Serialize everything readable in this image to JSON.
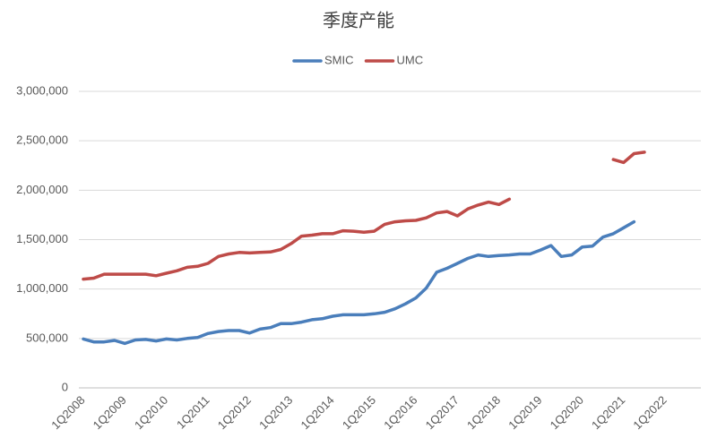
{
  "chart_data": {
    "type": "line",
    "title": "季度产能",
    "categories": [
      "1Q2008",
      null,
      null,
      null,
      "1Q2009",
      null,
      null,
      null,
      "1Q2010",
      null,
      null,
      null,
      "1Q2011",
      null,
      null,
      null,
      "1Q2012",
      null,
      null,
      null,
      "1Q2013",
      null,
      null,
      null,
      "1Q2014",
      null,
      null,
      null,
      "1Q2015",
      null,
      null,
      null,
      "1Q2016",
      null,
      null,
      null,
      "1Q2017",
      null,
      null,
      null,
      "1Q2018",
      null,
      null,
      null,
      "1Q2019",
      null,
      null,
      null,
      "1Q2020",
      null,
      null,
      null,
      "1Q2021",
      null,
      null,
      null,
      "1Q2022",
      null,
      null,
      null
    ],
    "series": [
      {
        "name": "SMIC",
        "color": "#4a7ebb",
        "values": [
          495000,
          465000,
          465000,
          480000,
          450000,
          485000,
          490000,
          475000,
          495000,
          485000,
          500000,
          510000,
          550000,
          570000,
          580000,
          580000,
          555000,
          595000,
          610000,
          650000,
          650000,
          665000,
          690000,
          700000,
          725000,
          740000,
          740000,
          740000,
          750000,
          765000,
          800000,
          850000,
          910000,
          1010000,
          1170000,
          1210000,
          1260000,
          1310000,
          1345000,
          1330000,
          1340000,
          1345000,
          1355000,
          1355000,
          1395000,
          1440000,
          1330000,
          1345000,
          1425000,
          1435000,
          1525000,
          1560000,
          1620000,
          1680000,
          null,
          null,
          null,
          null,
          null,
          null
        ]
      },
      {
        "name": "UMC",
        "color": "#be4b48",
        "values": [
          1100000,
          1110000,
          1150000,
          1150000,
          1150000,
          1150000,
          1150000,
          1135000,
          1160000,
          1185000,
          1220000,
          1230000,
          1260000,
          1330000,
          1355000,
          1370000,
          1365000,
          1370000,
          1375000,
          1400000,
          1460000,
          1535000,
          1545000,
          1560000,
          1560000,
          1590000,
          1585000,
          1575000,
          1585000,
          1655000,
          1680000,
          1690000,
          1695000,
          1720000,
          1770000,
          1785000,
          1740000,
          1810000,
          1850000,
          1880000,
          1855000,
          1910000,
          null,
          null,
          null,
          null,
          null,
          null,
          null,
          null,
          null,
          2310000,
          2280000,
          2370000,
          2385000,
          null,
          null,
          null,
          null,
          null
        ]
      }
    ],
    "ylim": [
      0,
      3000000
    ],
    "yticks": [
      0,
      {
        "value": 500000,
        "label": "500,000"
      },
      {
        "value": 1000000,
        "label": "1,000,000"
      },
      {
        "value": 1500000,
        "label": "1,500,000"
      },
      {
        "value": 2000000,
        "label": "2,000,000"
      },
      {
        "value": 2500000,
        "label": "2,500,000"
      },
      {
        "value": 3000000,
        "label": "3,000,000"
      }
    ],
    "grid": true,
    "legend": "top"
  }
}
